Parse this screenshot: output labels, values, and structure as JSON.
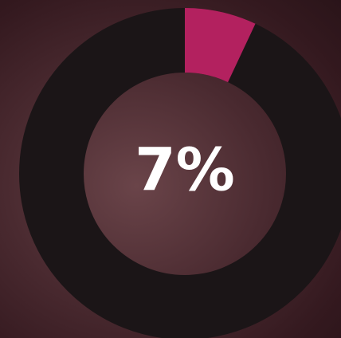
{
  "chart_data": {
    "type": "donut",
    "values": [
      7
    ],
    "value_labels": [
      "7%"
    ],
    "colors": [
      "#b3215f"
    ],
    "track_color": "#1b1517",
    "ylim": [
      0,
      100
    ]
  }
}
